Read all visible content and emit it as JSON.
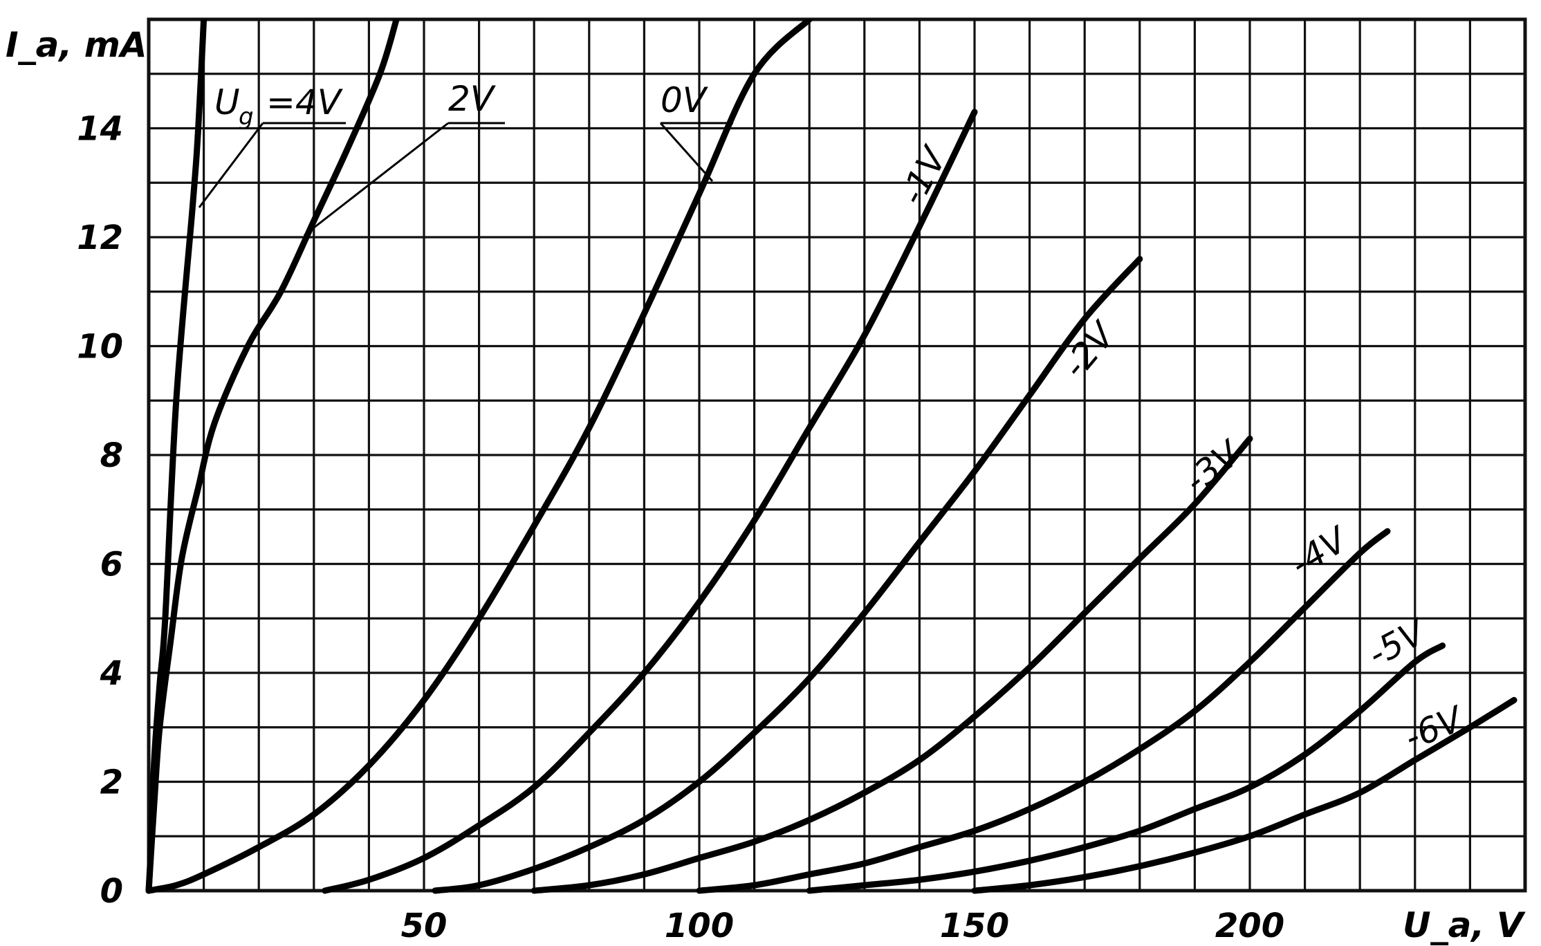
{
  "chart_data": {
    "type": "line",
    "title": "",
    "xlabel": "U_a, V",
    "ylabel": "I_a, mA",
    "xlim": [
      0,
      250
    ],
    "ylim": [
      0,
      16
    ],
    "grid": true,
    "legend": "none",
    "x_ticks": [
      {
        "value": 50,
        "label": "50"
      },
      {
        "value": 100,
        "label": "100"
      },
      {
        "value": 150,
        "label": "150"
      },
      {
        "value": 200,
        "label": "200"
      }
    ],
    "y_ticks": [
      {
        "value": 0,
        "label": "0"
      },
      {
        "value": 2,
        "label": "2"
      },
      {
        "value": 4,
        "label": "4"
      },
      {
        "value": 6,
        "label": "6"
      },
      {
        "value": 8,
        "label": "8"
      },
      {
        "value": 10,
        "label": "10"
      },
      {
        "value": 12,
        "label": "12"
      },
      {
        "value": 14,
        "label": "14"
      }
    ],
    "series": [
      {
        "name": "Ug=4V",
        "label": "=4V",
        "points": [
          [
            0,
            0
          ],
          [
            0.5,
            1
          ],
          [
            1,
            2.4
          ],
          [
            2,
            3.8
          ],
          [
            3,
            5
          ],
          [
            5,
            9
          ],
          [
            8,
            12.6
          ],
          [
            9,
            14
          ],
          [
            10,
            16
          ]
        ]
      },
      {
        "name": "2V",
        "label": "2V",
        "points": [
          [
            0,
            0
          ],
          [
            1,
            1.6
          ],
          [
            2,
            3
          ],
          [
            4,
            4.6
          ],
          [
            6,
            6.1
          ],
          [
            9,
            7.4
          ],
          [
            12,
            8.6
          ],
          [
            18,
            10
          ],
          [
            24,
            11
          ],
          [
            30,
            12.3
          ],
          [
            36,
            13.6
          ],
          [
            42,
            15
          ],
          [
            45,
            16
          ]
        ]
      },
      {
        "name": "0V",
        "label": "0V",
        "points": [
          [
            0,
            0
          ],
          [
            5,
            0.1
          ],
          [
            10,
            0.3
          ],
          [
            20,
            0.8
          ],
          [
            30,
            1.4
          ],
          [
            40,
            2.3
          ],
          [
            50,
            3.5
          ],
          [
            60,
            5
          ],
          [
            70,
            6.7
          ],
          [
            80,
            8.5
          ],
          [
            90,
            10.6
          ],
          [
            100,
            12.8
          ],
          [
            110,
            15
          ],
          [
            120,
            16
          ]
        ]
      },
      {
        "name": "-1V",
        "label": "-1V",
        "points": [
          [
            32,
            0
          ],
          [
            40,
            0.2
          ],
          [
            50,
            0.6
          ],
          [
            60,
            1.2
          ],
          [
            70,
            1.9
          ],
          [
            80,
            2.9
          ],
          [
            90,
            4
          ],
          [
            100,
            5.3
          ],
          [
            110,
            6.8
          ],
          [
            120,
            8.5
          ],
          [
            130,
            10.2
          ],
          [
            140,
            12.2
          ],
          [
            150,
            14.3
          ]
        ]
      },
      {
        "name": "-2V",
        "label": "-2V",
        "points": [
          [
            52,
            0
          ],
          [
            60,
            0.1
          ],
          [
            70,
            0.4
          ],
          [
            80,
            0.8
          ],
          [
            90,
            1.3
          ],
          [
            100,
            2
          ],
          [
            110,
            2.9
          ],
          [
            120,
            3.9
          ],
          [
            130,
            5.1
          ],
          [
            140,
            6.4
          ],
          [
            150,
            7.7
          ],
          [
            160,
            9.1
          ],
          [
            170,
            10.5
          ],
          [
            180,
            11.6
          ]
        ]
      },
      {
        "name": "-3V",
        "label": "-3V",
        "points": [
          [
            70,
            0
          ],
          [
            80,
            0.1
          ],
          [
            90,
            0.3
          ],
          [
            100,
            0.6
          ],
          [
            110,
            0.9
          ],
          [
            120,
            1.3
          ],
          [
            130,
            1.8
          ],
          [
            140,
            2.4
          ],
          [
            150,
            3.2
          ],
          [
            160,
            4.1
          ],
          [
            170,
            5.1
          ],
          [
            180,
            6.1
          ],
          [
            190,
            7.1
          ],
          [
            200,
            8.3
          ]
        ]
      },
      {
        "name": "-4V",
        "label": "-4V",
        "points": [
          [
            100,
            0
          ],
          [
            110,
            0.1
          ],
          [
            120,
            0.3
          ],
          [
            130,
            0.5
          ],
          [
            140,
            0.8
          ],
          [
            150,
            1.1
          ],
          [
            160,
            1.5
          ],
          [
            170,
            2
          ],
          [
            180,
            2.6
          ],
          [
            190,
            3.3
          ],
          [
            200,
            4.2
          ],
          [
            210,
            5.2
          ],
          [
            220,
            6.2
          ],
          [
            225,
            6.6
          ]
        ]
      },
      {
        "name": "-5V",
        "label": "-5V",
        "points": [
          [
            120,
            0
          ],
          [
            130,
            0.1
          ],
          [
            140,
            0.2
          ],
          [
            150,
            0.35
          ],
          [
            160,
            0.55
          ],
          [
            170,
            0.8
          ],
          [
            180,
            1.1
          ],
          [
            190,
            1.5
          ],
          [
            200,
            1.9
          ],
          [
            210,
            2.5
          ],
          [
            220,
            3.3
          ],
          [
            230,
            4.2
          ],
          [
            235,
            4.5
          ]
        ]
      },
      {
        "name": "-6V",
        "label": "-6V",
        "points": [
          [
            150,
            0
          ],
          [
            160,
            0.1
          ],
          [
            170,
            0.25
          ],
          [
            180,
            0.45
          ],
          [
            190,
            0.7
          ],
          [
            200,
            1
          ],
          [
            210,
            1.4
          ],
          [
            220,
            1.8
          ],
          [
            230,
            2.4
          ],
          [
            240,
            3
          ],
          [
            248,
            3.5
          ]
        ]
      }
    ]
  }
}
